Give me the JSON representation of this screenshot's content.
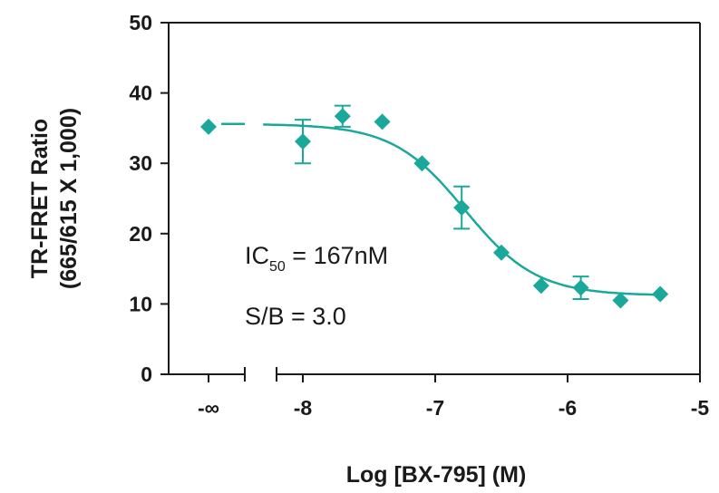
{
  "chart_data": {
    "type": "scatter",
    "title": "",
    "xlabel": "Log [BX-795] (M)",
    "ylabel_line1": "TR-FRET Ratio",
    "ylabel_line2": "(665/615 X 1,000)",
    "xlim": [
      -8.35,
      -5
    ],
    "ylim": [
      0,
      50
    ],
    "x_ticks": [
      -8,
      -7,
      -6,
      -5
    ],
    "x_tick_labels": [
      "-8",
      "-7",
      "-6",
      "-5"
    ],
    "y_ticks": [
      0,
      10,
      20,
      30,
      40,
      50
    ],
    "y_tick_labels": [
      "0",
      "10",
      "20",
      "30",
      "40",
      "50"
    ],
    "neg_inf_tick_label": "-∞",
    "neg_inf_point": {
      "x_label": "-∞",
      "y": 35.2
    },
    "series": [
      {
        "color": "#1aa89b",
        "marker": "diamond",
        "points": [
          {
            "x": -8.0,
            "y": 33.1,
            "err": 3.1
          },
          {
            "x": -7.7,
            "y": 36.7,
            "err": 1.5
          },
          {
            "x": -7.4,
            "y": 35.9,
            "err": 0
          },
          {
            "x": -7.1,
            "y": 30.0,
            "err": 0
          },
          {
            "x": -6.8,
            "y": 23.7,
            "err": 3.0
          },
          {
            "x": -6.5,
            "y": 17.3,
            "err": 0
          },
          {
            "x": -6.2,
            "y": 12.6,
            "err": 0
          },
          {
            "x": -5.9,
            "y": 12.3,
            "err": 1.6
          },
          {
            "x": -5.6,
            "y": 10.5,
            "err": 0
          },
          {
            "x": -5.3,
            "y": 11.4,
            "err": 0
          }
        ]
      }
    ],
    "fit": {
      "model": "four-parameter logistic",
      "top": 35.6,
      "bottom": 11.2,
      "log_ic50": -6.777,
      "hill_slope": 1.6,
      "x_start": -8.3,
      "x_end": -5.3
    },
    "annotations": {
      "ic50_prefix": "IC",
      "ic50_sub": "50",
      "ic50_value": " = 167nM",
      "sb": "S/B = 3.0"
    },
    "grid": false,
    "legend": "none"
  }
}
